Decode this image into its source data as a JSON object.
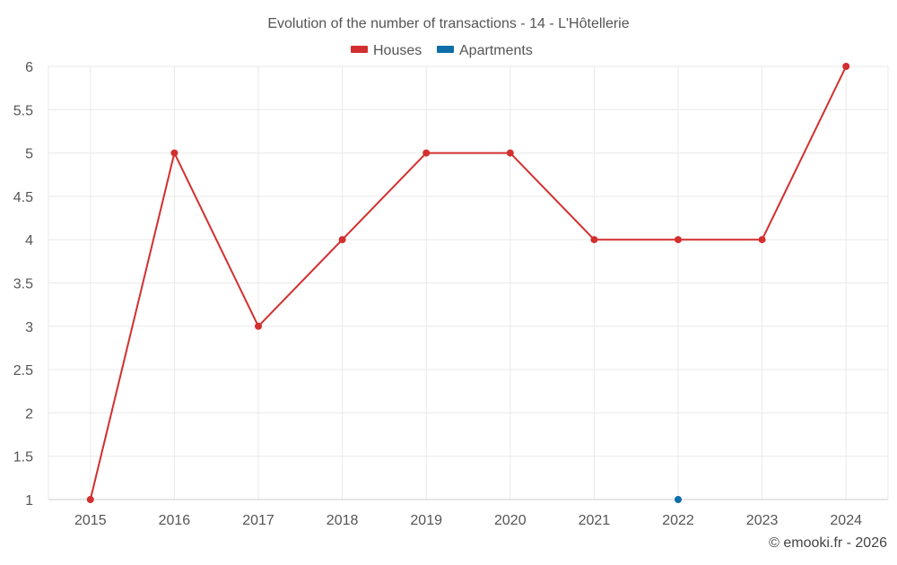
{
  "chart_data": {
    "type": "line",
    "title": "Evolution of the number of transactions - 14 - L'Hôtellerie",
    "categories": [
      "2015",
      "2016",
      "2017",
      "2018",
      "2019",
      "2020",
      "2021",
      "2022",
      "2023",
      "2024"
    ],
    "series": [
      {
        "name": "Houses",
        "color": "#d32f2f",
        "values": [
          1,
          5,
          3,
          4,
          5,
          5,
          4,
          4,
          4,
          6
        ]
      },
      {
        "name": "Apartments",
        "color": "#0d6ea8",
        "values": [
          null,
          null,
          null,
          null,
          null,
          null,
          null,
          1,
          null,
          null
        ]
      }
    ],
    "y_ticks": [
      "1",
      "1.5",
      "2",
      "2.5",
      "3",
      "3.5",
      "4",
      "4.5",
      "5",
      "5.5",
      "6"
    ],
    "ylim": [
      1,
      6
    ],
    "xlabel": "",
    "ylabel": "",
    "grid": true,
    "legend_position": "top-center"
  },
  "credit": "© emooki.fr - 2026"
}
